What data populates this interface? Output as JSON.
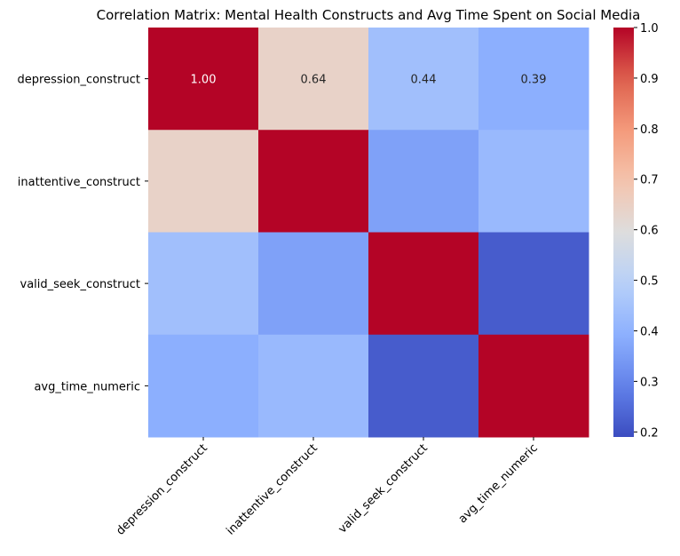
{
  "chart_data": {
    "type": "heatmap",
    "title": "Correlation Matrix: Mental Health Constructs and Avg Time Spent on Social Media",
    "row_labels": [
      "depression_construct",
      "inattentive_construct",
      "valid_seek_construct",
      "avg_time_numeric"
    ],
    "col_labels": [
      "depression_construct",
      "inattentive_construct",
      "valid_seek_construct",
      "avg_time_numeric"
    ],
    "values": [
      [
        1.0,
        0.64,
        0.44,
        0.39
      ],
      [
        0.64,
        1.0,
        0.36,
        0.42
      ],
      [
        0.44,
        0.36,
        1.0,
        0.22
      ],
      [
        0.39,
        0.42,
        0.22,
        1.0
      ]
    ],
    "annotations": [
      [
        "1.00",
        "0.64",
        "0.44",
        "0.39"
      ],
      [
        "",
        "",
        "",
        ""
      ],
      [
        "",
        "",
        "",
        ""
      ],
      [
        "",
        "",
        "",
        ""
      ]
    ],
    "colormap": "coolwarm",
    "vmin": 0.19,
    "vmax": 1.0,
    "colorbar_ticks": [
      1.0,
      0.9,
      0.8,
      0.7,
      0.6,
      0.5,
      0.4,
      0.3,
      0.2
    ],
    "colorbar_tick_labels": [
      "1.0",
      "0.9",
      "0.8",
      "0.7",
      "0.6",
      "0.5",
      "0.4",
      "0.3",
      "0.2"
    ],
    "grid": false,
    "legend": "colorbar-right"
  }
}
